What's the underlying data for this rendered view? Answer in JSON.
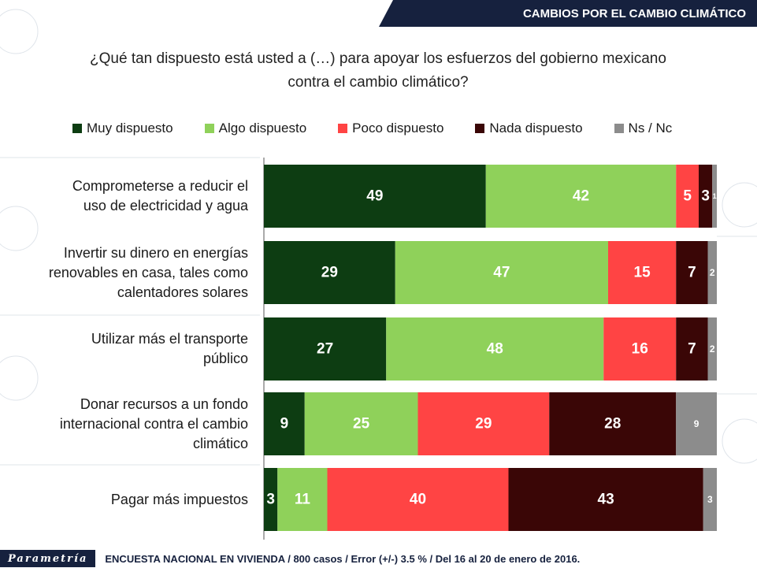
{
  "header": {
    "title": "CAMBIOS POR EL CAMBIO CLIMÁTICO"
  },
  "question": {
    "line1": "¿Qué tan dispuesto está usted a (…) para apoyar los esfuerzos del gobierno mexicano",
    "line2": "contra el cambio climático?"
  },
  "footer": {
    "logo": "Parametría",
    "note": "ENCUESTA NACIONAL EN VIVIENDA / 800 casos / Error (+/-) 3.5 % / Del 16 al 20 de enero de 2016."
  },
  "chart_data": {
    "type": "bar",
    "orientation": "horizontal",
    "stacked": true,
    "xlim": [
      0,
      100
    ],
    "legend_position": "top",
    "grid": false,
    "categories": [
      [
        "Comprometerse a reducir el",
        "uso de electricidad y agua"
      ],
      [
        "Invertir su dinero en energías",
        "renovables en casa, tales como",
        "calentadores solares"
      ],
      [
        "Utilizar más el transporte",
        "público"
      ],
      [
        "Donar recursos a un fondo",
        "internacional contra el cambio",
        "climático"
      ],
      [
        "Pagar más impuestos"
      ]
    ],
    "series": [
      {
        "name": "Muy dispuesto",
        "color": "#0d3d12",
        "values": [
          49,
          29,
          27,
          9,
          3
        ]
      },
      {
        "name": "Algo dispuesto",
        "color": "#8fd15a",
        "values": [
          42,
          47,
          48,
          25,
          11
        ]
      },
      {
        "name": "Poco dispuesto",
        "color": "#ff4444",
        "values": [
          5,
          15,
          16,
          29,
          40
        ]
      },
      {
        "name": "Nada dispuesto",
        "color": "#3a0606",
        "values": [
          3,
          7,
          7,
          28,
          43
        ]
      },
      {
        "name": "Ns / Nc",
        "color": "#8c8c8c",
        "values": [
          1,
          2,
          2,
          9,
          3
        ]
      }
    ]
  }
}
